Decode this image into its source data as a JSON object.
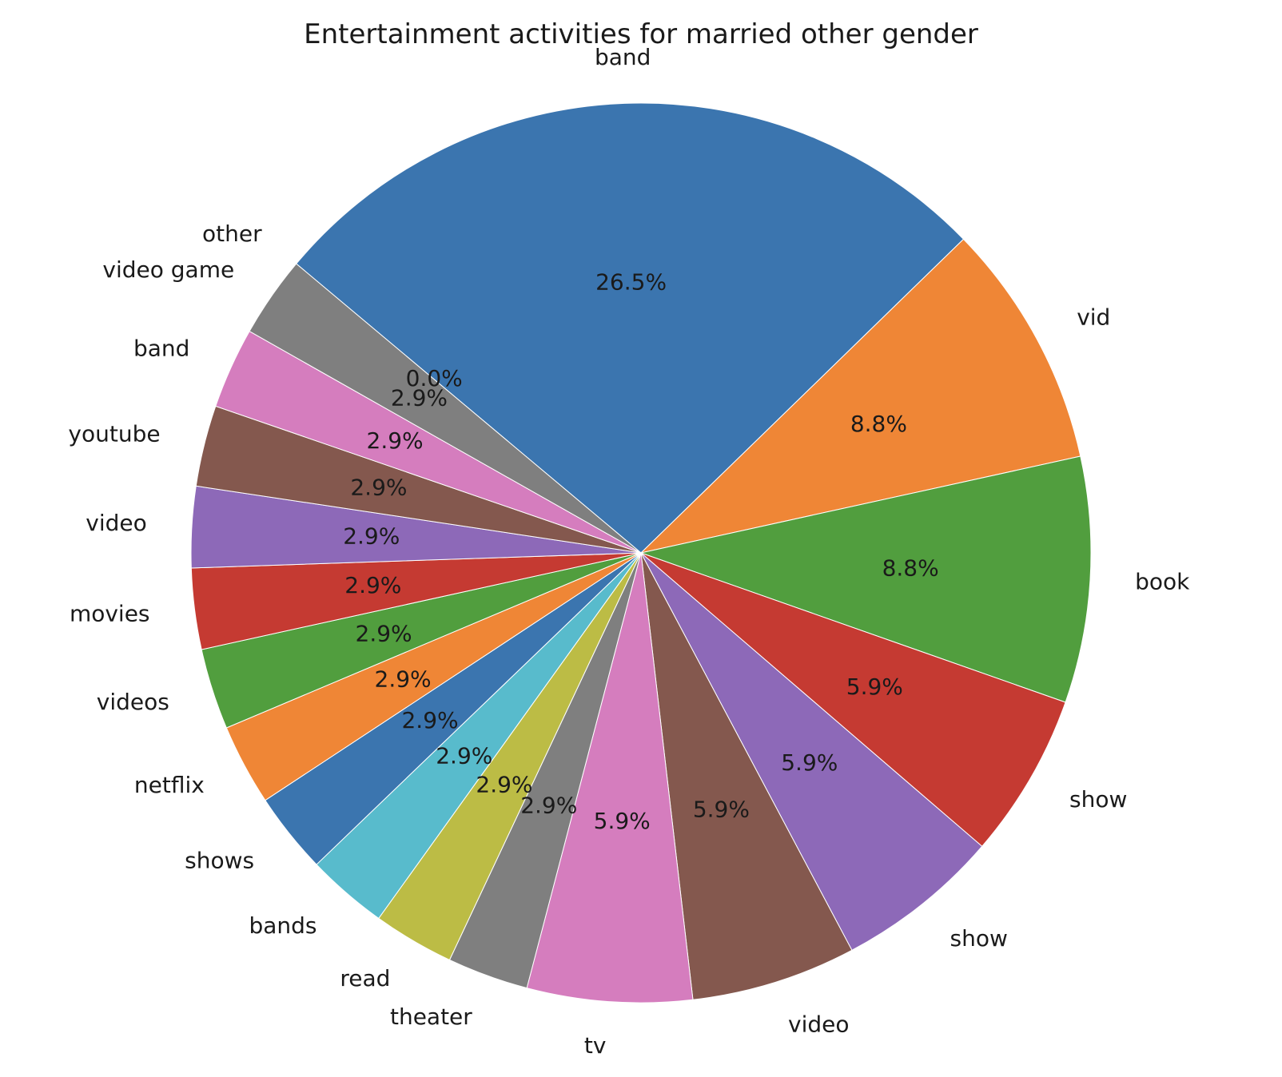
{
  "chart_data": {
    "type": "pie",
    "title": "Entertainment activities for married other gender",
    "autopct_format": "1 decimal place, percent",
    "start_angle_deg": 140,
    "direction": "clockwise",
    "slices": [
      {
        "label": "band",
        "value": 26.5,
        "pct_text": "26.5%",
        "color": "#3b75af"
      },
      {
        "label": "vid",
        "value": 8.8,
        "pct_text": "8.8%",
        "color": "#ef8636"
      },
      {
        "label": "book",
        "value": 8.8,
        "pct_text": "8.8%",
        "color": "#519e3e"
      },
      {
        "label": "show",
        "value": 5.9,
        "pct_text": "5.9%",
        "color": "#c53a32"
      },
      {
        "label": "show",
        "value": 5.9,
        "pct_text": "5.9%",
        "color": "#8d69b8"
      },
      {
        "label": "video",
        "value": 5.9,
        "pct_text": "5.9%",
        "color": "#84584e"
      },
      {
        "label": "tv",
        "value": 5.9,
        "pct_text": "5.9%",
        "color": "#d57dbe"
      },
      {
        "label": "theater",
        "value": 2.9,
        "pct_text": "2.9%",
        "color": "#7f7f7f"
      },
      {
        "label": "read",
        "value": 2.9,
        "pct_text": "2.9%",
        "color": "#bcbc45"
      },
      {
        "label": "bands",
        "value": 2.9,
        "pct_text": "2.9%",
        "color": "#58bbcc"
      },
      {
        "label": "shows",
        "value": 2.9,
        "pct_text": "2.9%",
        "color": "#3b75af"
      },
      {
        "label": "netflix",
        "value": 2.9,
        "pct_text": "2.9%",
        "color": "#ef8636"
      },
      {
        "label": "videos",
        "value": 2.9,
        "pct_text": "2.9%",
        "color": "#519e3e"
      },
      {
        "label": "movies",
        "value": 2.9,
        "pct_text": "2.9%",
        "color": "#c53a32"
      },
      {
        "label": "video",
        "value": 2.9,
        "pct_text": "2.9%",
        "color": "#8d69b8"
      },
      {
        "label": "youtube",
        "value": 2.9,
        "pct_text": "2.9%",
        "color": "#84584e"
      },
      {
        "label": "band",
        "value": 2.9,
        "pct_text": "2.9%",
        "color": "#d57dbe"
      },
      {
        "label": "video game",
        "value": 2.9,
        "pct_text": "2.9%",
        "color": "#7f7f7f"
      },
      {
        "label": "other",
        "value": 0.0,
        "pct_text": "0.0%",
        "color": "#bcbc45"
      }
    ]
  }
}
